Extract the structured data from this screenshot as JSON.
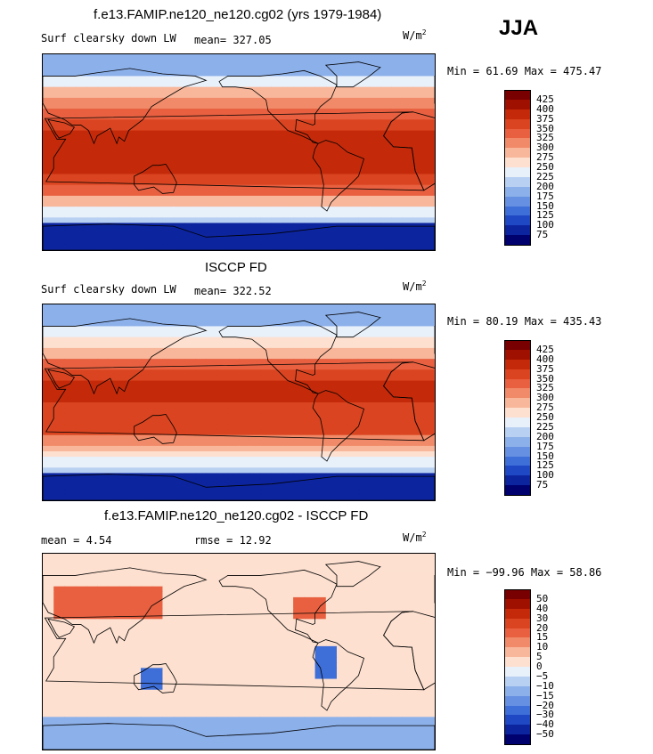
{
  "season": "JJA",
  "panels": [
    {
      "title": "f.e13.FAMIP.ne120_ne120.cg02 (yrs 1979-1984)",
      "left_label": "Surf clearsky down LW",
      "stat_label": "mean= 327.05",
      "units_main": "W/m",
      "units_sup": "2",
      "minmax": "Min =  61.69 Max = 475.47",
      "colorbar": {
        "labels": [
          "425",
          "400",
          "375",
          "350",
          "325",
          "300",
          "275",
          "250",
          "225",
          "200",
          "175",
          "150",
          "125",
          "100",
          "75"
        ],
        "colors": [
          "#780000",
          "#a01000",
          "#c42a0a",
          "#da4420",
          "#e86040",
          "#f08a68",
          "#f8b69a",
          "#fde0d0",
          "#e8f0fa",
          "#b8d0f2",
          "#8cb0ea",
          "#6690e2",
          "#3e6ed8",
          "#1f48c4",
          "#0c249e",
          "#00006e"
        ]
      },
      "field": "lw1"
    },
    {
      "title": "ISCCP FD",
      "left_label": "Surf clearsky down LW",
      "stat_label": "mean= 322.52",
      "units_main": "W/m",
      "units_sup": "2",
      "minmax": "Min =  80.19 Max = 435.43",
      "colorbar": {
        "labels": [
          "425",
          "400",
          "375",
          "350",
          "325",
          "300",
          "275",
          "250",
          "225",
          "200",
          "175",
          "150",
          "125",
          "100",
          "75"
        ],
        "colors": [
          "#780000",
          "#a01000",
          "#c42a0a",
          "#da4420",
          "#e86040",
          "#f08a68",
          "#f8b69a",
          "#fde0d0",
          "#e8f0fa",
          "#b8d0f2",
          "#8cb0ea",
          "#6690e2",
          "#3e6ed8",
          "#1f48c4",
          "#0c249e",
          "#00006e"
        ]
      },
      "field": "lw2"
    },
    {
      "title": "f.e13.FAMIP.ne120_ne120.cg02 - ISCCP FD",
      "left_label": "mean =    4.54",
      "stat_label": "rmse =   12.92",
      "units_main": "W/m",
      "units_sup": "2",
      "minmax": "Min = −99.96 Max =  58.86",
      "colorbar": {
        "labels": [
          "50",
          "40",
          "30",
          "20",
          "15",
          "10",
          "5",
          "0",
          "−5",
          "−10",
          "−15",
          "−20",
          "−30",
          "−40",
          "−50"
        ],
        "colors": [
          "#780000",
          "#a01000",
          "#c42a0a",
          "#da4420",
          "#e86040",
          "#f08a68",
          "#f8b69a",
          "#fde0d0",
          "#e8f0fa",
          "#b8d0f2",
          "#8cb0ea",
          "#6690e2",
          "#3e6ed8",
          "#1f48c4",
          "#0c249e",
          "#00006e"
        ]
      },
      "field": "diff"
    }
  ]
}
